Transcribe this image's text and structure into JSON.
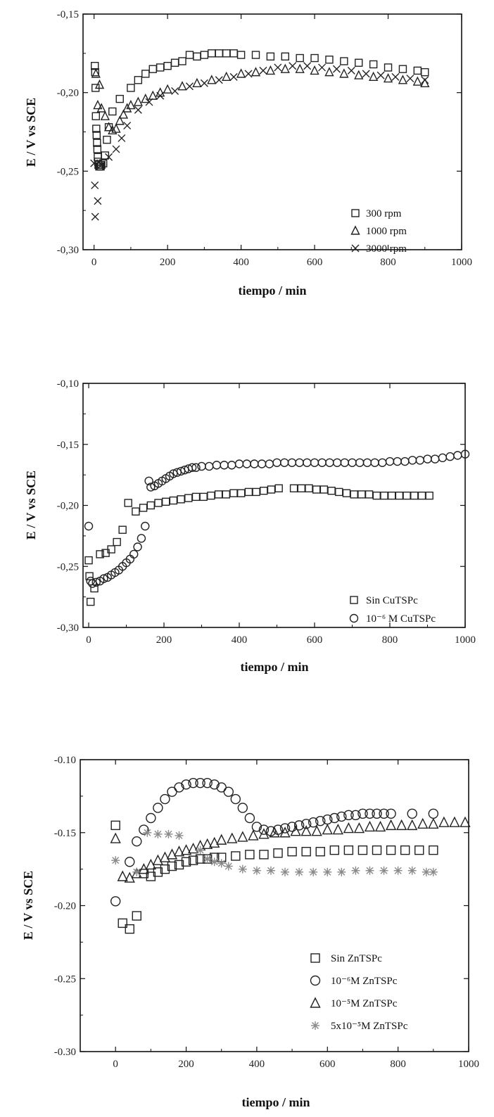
{
  "chart_data": [
    {
      "type": "scatter",
      "xlabel": "tiempo / min",
      "ylabel": "E / V vs SCE",
      "xlim": [
        -30,
        1000
      ],
      "ylim": [
        -0.3,
        -0.15
      ],
      "x_ticks": [
        0,
        200,
        400,
        600,
        800,
        1000
      ],
      "x_tick_labels": [
        "0",
        "200",
        "400",
        "600",
        "800",
        "1000"
      ],
      "y_ticks": [
        -0.3,
        -0.25,
        -0.2,
        -0.15
      ],
      "y_tick_labels": [
        "-0,30",
        "-0,25",
        "-0,20",
        "-0,15"
      ],
      "legend_position": "bottom-right",
      "series": [
        {
          "name": "300 rpm",
          "marker": "square",
          "color": "#222222",
          "x": [
            2,
            3,
            4,
            5,
            6,
            7,
            8,
            9,
            10,
            11,
            12,
            14,
            16,
            18,
            20,
            25,
            30,
            35,
            40,
            50,
            70,
            100,
            120,
            140,
            160,
            180,
            200,
            220,
            240,
            260,
            280,
            300,
            320,
            340,
            360,
            380,
            400,
            440,
            480,
            520,
            560,
            600,
            640,
            680,
            720,
            760,
            800,
            840,
            880,
            900
          ],
          "y": [
            -0.183,
            -0.187,
            -0.197,
            -0.215,
            -0.223,
            -0.227,
            -0.232,
            -0.236,
            -0.241,
            -0.244,
            -0.246,
            -0.247,
            -0.247,
            -0.247,
            -0.246,
            -0.245,
            -0.24,
            -0.23,
            -0.222,
            -0.212,
            -0.204,
            -0.197,
            -0.192,
            -0.188,
            -0.185,
            -0.184,
            -0.183,
            -0.181,
            -0.18,
            -0.176,
            -0.177,
            -0.176,
            -0.175,
            -0.175,
            -0.175,
            -0.175,
            -0.176,
            -0.176,
            -0.177,
            -0.177,
            -0.178,
            -0.178,
            -0.179,
            -0.18,
            -0.181,
            -0.182,
            -0.184,
            -0.185,
            -0.186,
            -0.187
          ]
        },
        {
          "name": "1000 rpm",
          "marker": "triangle",
          "color": "#222222",
          "x": [
            5,
            10,
            15,
            20,
            30,
            40,
            50,
            60,
            70,
            80,
            90,
            100,
            120,
            140,
            160,
            180,
            200,
            240,
            280,
            320,
            360,
            400,
            440,
            480,
            520,
            560,
            600,
            640,
            680,
            720,
            760,
            800,
            840,
            880,
            900
          ],
          "y": [
            -0.188,
            -0.208,
            -0.195,
            -0.21,
            -0.215,
            -0.222,
            -0.224,
            -0.223,
            -0.218,
            -0.214,
            -0.21,
            -0.208,
            -0.206,
            -0.204,
            -0.202,
            -0.2,
            -0.198,
            -0.196,
            -0.194,
            -0.192,
            -0.19,
            -0.188,
            -0.187,
            -0.186,
            -0.185,
            -0.185,
            -0.186,
            -0.187,
            -0.188,
            -0.189,
            -0.19,
            -0.191,
            -0.192,
            -0.193,
            -0.194
          ]
        },
        {
          "name": "3000 rpm",
          "marker": "x",
          "color": "#222222",
          "x": [
            0,
            2,
            3,
            10,
            20,
            40,
            60,
            75,
            90,
            120,
            150,
            180,
            220,
            260,
            300,
            340,
            380,
            420,
            460,
            500,
            540,
            580,
            620,
            660,
            700,
            740,
            780,
            820,
            860,
            900
          ],
          "y": [
            -0.245,
            -0.259,
            -0.279,
            -0.269,
            -0.246,
            -0.241,
            -0.236,
            -0.229,
            -0.221,
            -0.211,
            -0.206,
            -0.202,
            -0.199,
            -0.196,
            -0.194,
            -0.192,
            -0.19,
            -0.188,
            -0.186,
            -0.184,
            -0.183,
            -0.183,
            -0.184,
            -0.185,
            -0.186,
            -0.188,
            -0.189,
            -0.19,
            -0.191,
            -0.192
          ]
        }
      ]
    },
    {
      "type": "scatter",
      "xlabel": "tiempo / min",
      "ylabel": "E / V vs SCE",
      "xlim": [
        -15,
        1000
      ],
      "ylim": [
        -0.3,
        -0.1
      ],
      "x_ticks": [
        0,
        200,
        400,
        600,
        800,
        1000
      ],
      "x_tick_labels": [
        "0",
        "200",
        "400",
        "600",
        "800",
        "1000"
      ],
      "y_ticks": [
        -0.3,
        -0.25,
        -0.2,
        -0.15,
        -0.1
      ],
      "y_tick_labels": [
        "-0,30",
        "-0,25",
        "-0,20",
        "-0,15",
        "-0,10"
      ],
      "legend_position": "bottom-right",
      "series": [
        {
          "name": "Sin CuTSPc",
          "legend_label": "Sin CuTSPc",
          "marker": "square",
          "color": "#222222",
          "x": [
            0,
            2,
            5,
            15,
            30,
            45,
            60,
            75,
            90,
            105,
            125,
            145,
            165,
            185,
            205,
            225,
            245,
            265,
            285,
            305,
            325,
            345,
            365,
            385,
            405,
            425,
            445,
            465,
            485,
            505,
            545,
            565,
            585,
            605,
            625,
            645,
            665,
            685,
            705,
            725,
            745,
            765,
            785,
            805,
            825,
            845,
            865,
            885,
            905
          ],
          "y": [
            -0.245,
            -0.258,
            -0.279,
            -0.268,
            -0.24,
            -0.239,
            -0.236,
            -0.23,
            -0.22,
            -0.198,
            -0.205,
            -0.202,
            -0.2,
            -0.198,
            -0.197,
            -0.196,
            -0.195,
            -0.194,
            -0.193,
            -0.193,
            -0.192,
            -0.191,
            -0.191,
            -0.19,
            -0.19,
            -0.189,
            -0.189,
            -0.188,
            -0.187,
            -0.186,
            -0.186,
            -0.186,
            -0.186,
            -0.187,
            -0.187,
            -0.188,
            -0.189,
            -0.19,
            -0.191,
            -0.191,
            -0.191,
            -0.192,
            -0.192,
            -0.192,
            -0.192,
            -0.192,
            -0.192,
            -0.192,
            -0.192
          ]
        },
        {
          "name": "10-6 M CuTSPc",
          "legend_label": "10⁻⁶ M CuTSPc",
          "marker": "circle",
          "color": "#222222",
          "x": [
            0,
            5,
            10,
            20,
            30,
            40,
            50,
            60,
            70,
            80,
            90,
            100,
            110,
            120,
            130,
            140,
            150,
            160,
            165,
            175,
            185,
            195,
            205,
            215,
            225,
            235,
            245,
            255,
            265,
            275,
            285,
            300,
            320,
            340,
            360,
            380,
            400,
            420,
            440,
            460,
            480,
            500,
            520,
            540,
            560,
            580,
            600,
            620,
            640,
            660,
            680,
            700,
            720,
            740,
            760,
            780,
            800,
            820,
            840,
            860,
            880,
            900,
            920,
            940,
            960,
            980,
            1000
          ],
          "y": [
            -0.217,
            -0.262,
            -0.264,
            -0.263,
            -0.262,
            -0.26,
            -0.259,
            -0.257,
            -0.255,
            -0.253,
            -0.25,
            -0.247,
            -0.244,
            -0.24,
            -0.234,
            -0.227,
            -0.217,
            -0.18,
            -0.185,
            -0.184,
            -0.182,
            -0.18,
            -0.178,
            -0.176,
            -0.174,
            -0.173,
            -0.172,
            -0.171,
            -0.17,
            -0.169,
            -0.169,
            -0.168,
            -0.168,
            -0.167,
            -0.167,
            -0.167,
            -0.166,
            -0.166,
            -0.166,
            -0.166,
            -0.166,
            -0.165,
            -0.165,
            -0.165,
            -0.165,
            -0.165,
            -0.165,
            -0.165,
            -0.165,
            -0.165,
            -0.165,
            -0.165,
            -0.165,
            -0.165,
            -0.165,
            -0.165,
            -0.164,
            -0.164,
            -0.164,
            -0.163,
            -0.163,
            -0.162,
            -0.162,
            -0.161,
            -0.16,
            -0.159,
            -0.158
          ]
        }
      ]
    },
    {
      "type": "scatter",
      "xlabel": "tiempo / min",
      "ylabel": "E / V vs SCE",
      "xlim": [
        -100,
        1000
      ],
      "ylim": [
        -0.3,
        -0.1
      ],
      "x_ticks": [
        0,
        200,
        400,
        600,
        800,
        1000
      ],
      "x_tick_labels": [
        "0",
        "200",
        "400",
        "600",
        "800",
        "1000"
      ],
      "y_ticks": [
        -0.3,
        -0.25,
        -0.2,
        -0.15,
        -0.1
      ],
      "y_tick_labels": [
        "-0.30",
        "-0.25",
        "-0.20",
        "-0.15",
        "-0.10"
      ],
      "legend_position": "bottom-right",
      "series": [
        {
          "name": "Sin ZnTSPc",
          "legend_label": "Sin ZnTSPc",
          "marker": "square",
          "color": "#222222",
          "x": [
            0,
            20,
            40,
            60,
            80,
            100,
            120,
            140,
            160,
            180,
            200,
            220,
            240,
            260,
            280,
            300,
            340,
            380,
            420,
            460,
            500,
            540,
            580,
            620,
            660,
            700,
            740,
            780,
            820,
            860,
            900
          ],
          "y": [
            -0.145,
            -0.212,
            -0.216,
            -0.207,
            -0.178,
            -0.18,
            -0.177,
            -0.175,
            -0.173,
            -0.172,
            -0.17,
            -0.169,
            -0.168,
            -0.168,
            -0.167,
            -0.167,
            -0.166,
            -0.165,
            -0.165,
            -0.164,
            -0.163,
            -0.163,
            -0.163,
            -0.162,
            -0.162,
            -0.162,
            -0.162,
            -0.162,
            -0.162,
            -0.162,
            -0.162
          ]
        },
        {
          "name": "10-6M ZnTSPc",
          "legend_label": "10⁻⁶M ZnTSPc",
          "marker": "circle",
          "color": "#222222",
          "x": [
            0,
            40,
            60,
            80,
            100,
            120,
            140,
            160,
            180,
            200,
            220,
            240,
            260,
            280,
            300,
            320,
            340,
            360,
            380,
            400,
            420,
            440,
            460,
            480,
            500,
            520,
            540,
            560,
            580,
            600,
            620,
            640,
            660,
            680,
            700,
            720,
            740,
            760,
            780,
            840,
            900
          ],
          "y": [
            -0.197,
            -0.17,
            -0.156,
            -0.148,
            -0.14,
            -0.133,
            -0.127,
            -0.122,
            -0.119,
            -0.117,
            -0.116,
            -0.116,
            -0.116,
            -0.117,
            -0.119,
            -0.122,
            -0.127,
            -0.133,
            -0.14,
            -0.146,
            -0.148,
            -0.149,
            -0.148,
            -0.147,
            -0.146,
            -0.145,
            -0.144,
            -0.143,
            -0.142,
            -0.141,
            -0.14,
            -0.139,
            -0.138,
            -0.138,
            -0.137,
            -0.137,
            -0.137,
            -0.137,
            -0.137,
            -0.137,
            -0.137
          ]
        },
        {
          "name": "10-5M ZnTSPc",
          "legend_label": "10⁻⁵M ZnTSPc",
          "marker": "triangle",
          "color": "#222222",
          "x": [
            0,
            20,
            40,
            60,
            80,
            100,
            120,
            140,
            160,
            180,
            200,
            220,
            240,
            260,
            280,
            300,
            330,
            360,
            390,
            420,
            450,
            480,
            510,
            540,
            570,
            600,
            630,
            660,
            690,
            720,
            750,
            780,
            810,
            840,
            870,
            900,
            930,
            960,
            990
          ],
          "y": [
            -0.154,
            -0.18,
            -0.181,
            -0.178,
            -0.175,
            -0.172,
            -0.169,
            -0.167,
            -0.165,
            -0.163,
            -0.162,
            -0.161,
            -0.159,
            -0.158,
            -0.157,
            -0.155,
            -0.154,
            -0.153,
            -0.152,
            -0.151,
            -0.15,
            -0.15,
            -0.149,
            -0.149,
            -0.149,
            -0.148,
            -0.148,
            -0.147,
            -0.147,
            -0.146,
            -0.146,
            -0.145,
            -0.145,
            -0.145,
            -0.144,
            -0.144,
            -0.143,
            -0.143,
            -0.143
          ]
        },
        {
          "name": "5x10-5M ZnTSPc",
          "legend_label": "5x10⁻⁵M ZnTSPc",
          "marker": "asterisk",
          "color": "#8a8a8a",
          "x": [
            0,
            60,
            90,
            120,
            150,
            180,
            240,
            260,
            280,
            300,
            320,
            360,
            400,
            440,
            480,
            520,
            560,
            600,
            640,
            680,
            720,
            760,
            800,
            840,
            880,
            900
          ],
          "y": [
            -0.169,
            -0.177,
            -0.15,
            -0.151,
            -0.151,
            -0.152,
            -0.162,
            -0.168,
            -0.17,
            -0.171,
            -0.173,
            -0.175,
            -0.176,
            -0.176,
            -0.177,
            -0.177,
            -0.177,
            -0.177,
            -0.177,
            -0.176,
            -0.176,
            -0.176,
            -0.176,
            -0.176,
            -0.177,
            -0.177
          ]
        }
      ]
    }
  ]
}
